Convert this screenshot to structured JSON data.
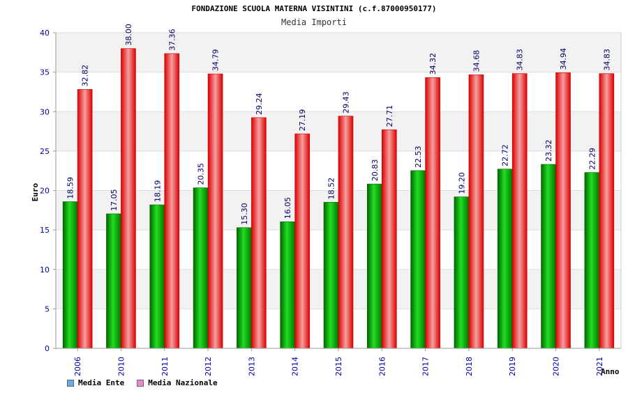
{
  "chart_data": {
    "type": "bar",
    "title": "FONDAZIONE SCUOLA MATERNA VISINTINI (c.f.87000950177)",
    "subtitle": "Media Importi",
    "xlabel": "Anno",
    "ylabel": "Euro",
    "ylim": [
      0,
      40
    ],
    "yticks": [
      "0",
      "5",
      "10",
      "15",
      "20",
      "25",
      "30",
      "35",
      "40"
    ],
    "categories": [
      "2006",
      "2010",
      "2011",
      "2012",
      "2013",
      "2014",
      "2015",
      "2016",
      "2017",
      "2018",
      "2019",
      "2020",
      "2021"
    ],
    "series": [
      {
        "name": "Media Ente",
        "color": "#00aa00",
        "values": [
          18.59,
          17.05,
          18.19,
          20.35,
          15.3,
          16.05,
          18.52,
          20.83,
          22.53,
          19.2,
          22.72,
          23.32,
          22.29
        ],
        "labels": [
          "18.59",
          "17.05",
          "18.19",
          "20.35",
          "15.30",
          "16.05",
          "18.52",
          "20.83",
          "22.53",
          "19.20",
          "22.72",
          "23.32",
          "22.29"
        ]
      },
      {
        "name": "Media Nazionale",
        "color": "#ee1111",
        "values": [
          32.82,
          38.0,
          37.36,
          34.79,
          29.24,
          27.19,
          29.43,
          27.71,
          34.32,
          34.68,
          34.83,
          34.94,
          34.83
        ],
        "labels": [
          "32.82",
          "38.00",
          "37.36",
          "34.79",
          "29.24",
          "27.19",
          "29.43",
          "27.71",
          "34.32",
          "34.68",
          "34.83",
          "34.94",
          "34.83"
        ]
      }
    ],
    "legend": {
      "position": "bottom-left",
      "items": [
        {
          "label": "Media Ente",
          "color": "#66aaee"
        },
        {
          "label": "Media Nazionale",
          "color": "#ee88cc"
        }
      ]
    },
    "grid": true
  }
}
